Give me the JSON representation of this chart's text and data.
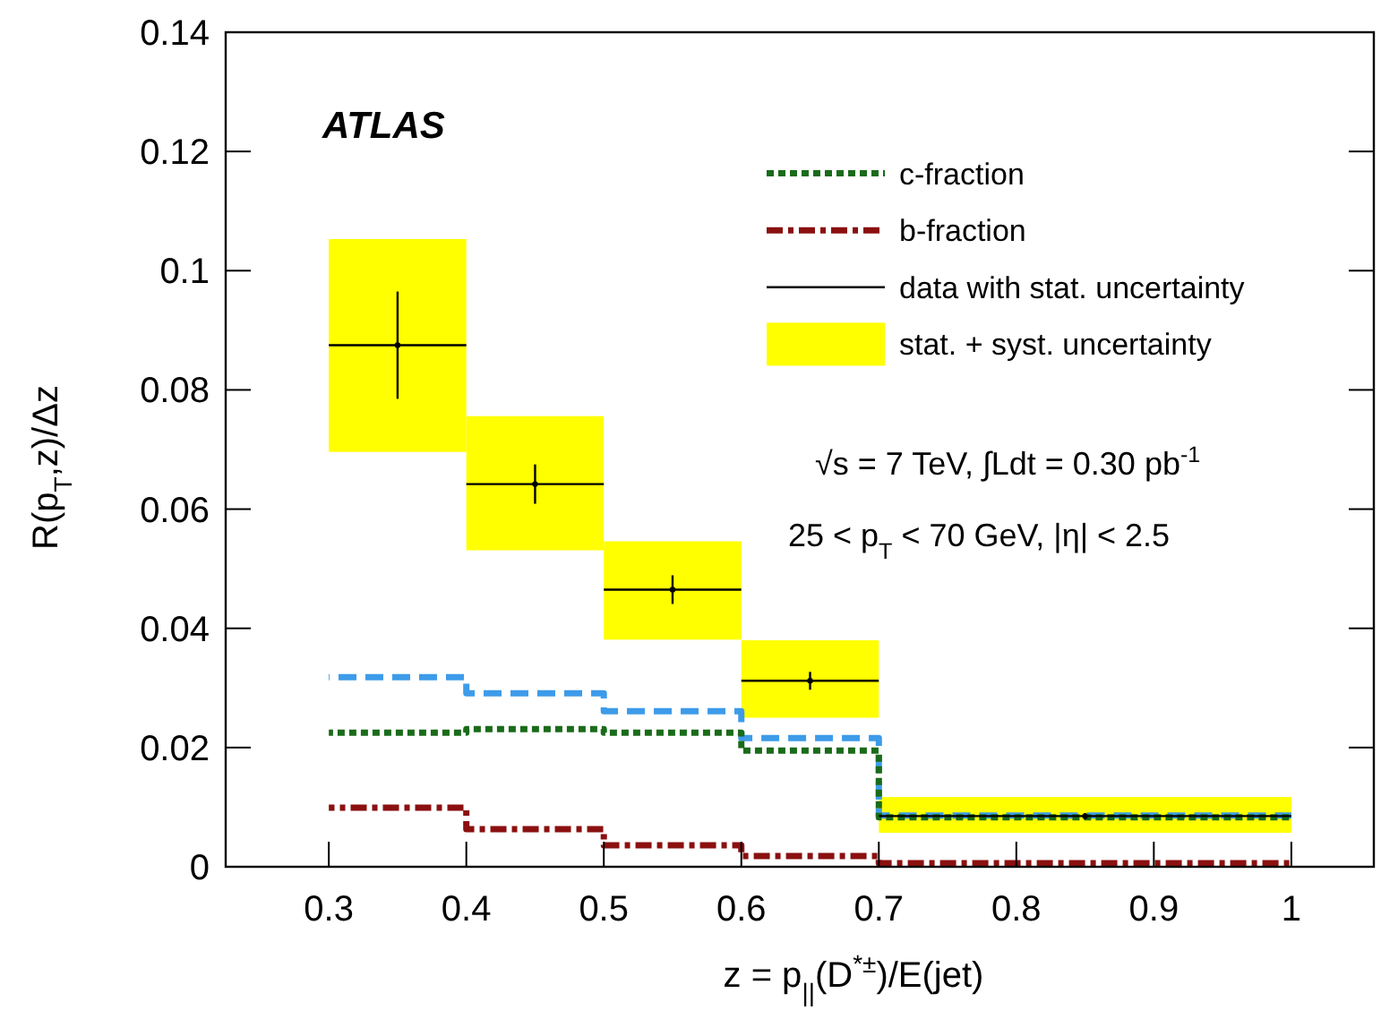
{
  "chart_data": {
    "type": "step",
    "xlabel": "z = p$_{||}$(D$^{*±}$)/E(jet)",
    "ylabel": "R(p$_{T}$,z)/Δz",
    "xlim": [
      0.225,
      1.06
    ],
    "xticks": [
      0.3,
      0.4,
      0.5,
      0.6,
      0.7,
      0.8,
      0.9,
      1
    ],
    "ylim": [
      0,
      0.14
    ],
    "yticks": [
      0,
      0.02,
      0.04,
      0.06,
      0.08,
      0.1,
      0.12,
      0.14
    ],
    "grid": false,
    "legend": "top right",
    "annotations": [
      "ATLAS",
      "√s = 7 TeV, ∫Ldt = 0.30 pb$^{-1}$",
      "25 < p$_{T}$ < 70 GeV, |η| < 2.5"
    ],
    "series": [
      {
        "color": "#3d9be9",
        "line_style": "dashed",
        "x": [
          0.3,
          0.4,
          0.5,
          0.6,
          0.7,
          1.0
        ],
        "values": [
          0.0318,
          0.0291,
          0.0261,
          0.0216,
          0.0086,
          0.0086
        ]
      },
      {
        "name": "c-fraction",
        "color": "#1a6b1a",
        "line_style": "dotted",
        "x": [
          0.3,
          0.4,
          0.5,
          0.6,
          0.7,
          1.0
        ],
        "values": [
          0.0225,
          0.0231,
          0.0225,
          0.0195,
          0.0083,
          0.0083
        ]
      },
      {
        "name": "b-fraction",
        "color": "#8b1010",
        "line_style": "dashdot",
        "x": [
          0.3,
          0.4,
          0.5,
          0.6,
          0.7,
          1.0
        ],
        "values": [
          0.0099,
          0.0063,
          0.0036,
          0.0018,
          0.0006,
          0.0006
        ]
      },
      {
        "type": "scatter",
        "name": "data with stat. uncertainty",
        "color": "#000000",
        "x": [
          0.35,
          0.45,
          0.55,
          0.65,
          0.85
        ],
        "values": [
          0.0875,
          0.0642,
          0.0465,
          0.0312,
          0.0085
        ],
        "errors": [
          0.009,
          0.0033,
          0.0024,
          0.0015,
          0.0005
        ],
        "xerrors": [
          0.05,
          0.05,
          0.05,
          0.05,
          0.15
        ]
      },
      {
        "type": "histogram",
        "name": "stat. + syst. uncertainty",
        "color": "#ffff00",
        "bins": [
          0.3,
          0.4,
          0.5,
          0.6,
          0.7,
          1.0
        ],
        "base": [
          0.0696,
          0.0531,
          0.0381,
          0.025,
          0.0057
        ],
        "values": [
          0.0357,
          0.0225,
          0.0165,
          0.013,
          0.006
        ]
      }
    ]
  }
}
